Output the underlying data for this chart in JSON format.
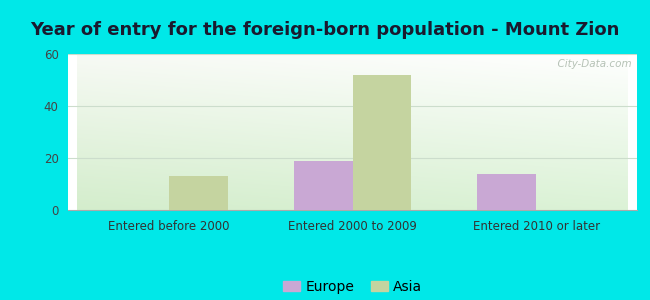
{
  "title": "Year of entry for the foreign-born population - Mount Zion",
  "categories": [
    "Entered before 2000",
    "Entered 2000 to 2009",
    "Entered 2010 or later"
  ],
  "europe_values": [
    0,
    19,
    14
  ],
  "asia_values": [
    13,
    52,
    0
  ],
  "europe_color": "#c9a8d4",
  "asia_color": "#c5d4a0",
  "ylim": [
    0,
    60
  ],
  "yticks": [
    0,
    20,
    40,
    60
  ],
  "background_outer": "#00e8e8",
  "bg_top_left": "#e8f5e8",
  "bg_top_right": "#f5faf5",
  "bg_bottom_left": "#d0ecd0",
  "bg_bottom_right": "#e8f5e8",
  "title_fontsize": 13,
  "legend_labels": [
    "Europe",
    "Asia"
  ],
  "bar_width": 0.32,
  "watermark": "  City-Data.com"
}
